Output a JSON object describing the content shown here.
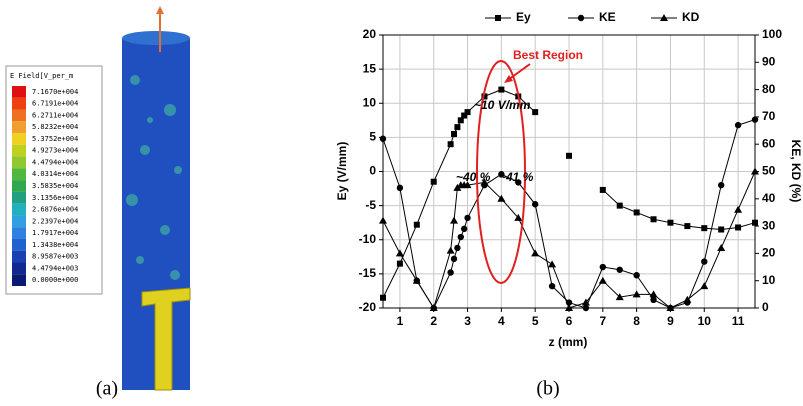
{
  "panel_a": {
    "legend_title": "E Field[V_per_m",
    "legend_labels": [
      "7.1670e+004",
      "6.7191e+004",
      "6.2711e+004",
      "5.8232e+004",
      "5.3752e+004",
      "4.9273e+004",
      "4.4794e+004",
      "4.0314e+004",
      "3.5835e+004",
      "3.1356e+004",
      "2.6876e+004",
      "2.2397e+004",
      "1.7917e+004",
      "1.3438e+004",
      "8.9587e+003",
      "4.4794e+003",
      "0.0000e+000"
    ]
  },
  "captions": [
    "(a)",
    "(b)"
  ],
  "chart_data": {
    "type": "line",
    "xlabel": "z (mm)",
    "ylabel": "Ey (V/mm)",
    "y2label": "KE, KD (%)",
    "annotations": [
      "Best Region",
      "~10 V/mm",
      "~40 %",
      "~41 %"
    ],
    "x": [
      0.5,
      1,
      1.5,
      2,
      2.5,
      2.6,
      2.7,
      2.8,
      2.9,
      3,
      3.5,
      4,
      4.5,
      5,
      5.5,
      6,
      6.5,
      7,
      7.5,
      8,
      8.5,
      9,
      9.5,
      10,
      10.5,
      11,
      11.5
    ],
    "series": [
      {
        "name": "Ey",
        "color": "#000000",
        "marker": "square",
        "values": [
          -18.5,
          -13.5,
          -7.8,
          -1.5,
          4,
          5.5,
          6.5,
          7.5,
          8.2,
          8.7,
          11,
          12,
          11,
          8.7,
          null,
          2.3,
          null,
          -2.7,
          -5,
          -6,
          -7,
          -7.5,
          -8,
          -8.3,
          -8.5,
          -8.2,
          -7.5
        ]
      },
      {
        "name": "KE",
        "color": "#000000",
        "marker": "circle",
        "axis": "y2",
        "values": [
          62,
          44,
          10,
          0,
          13,
          18,
          22,
          26,
          29,
          33,
          45,
          49,
          46,
          38,
          8,
          2,
          0,
          15,
          14,
          12,
          3,
          0,
          2,
          17,
          45,
          67,
          69
        ]
      },
      {
        "name": "KD",
        "color": "#000000",
        "marker": "triangle",
        "axis": "y2",
        "values": [
          32,
          20,
          10,
          0,
          21,
          32,
          44,
          45,
          45,
          45,
          46,
          40,
          33,
          20,
          16,
          0,
          2,
          10,
          4,
          5,
          5,
          0,
          3,
          8,
          22,
          36,
          50
        ]
      }
    ],
    "xlim": [
      0.5,
      11.5
    ],
    "xticks": [
      1,
      2,
      3,
      4,
      5,
      6,
      7,
      8,
      9,
      10,
      11
    ],
    "ylim": [
      -20,
      20
    ],
    "yticks": [
      -20,
      -15,
      -10,
      -5,
      0,
      5,
      10,
      15,
      20
    ],
    "y2lim": [
      0,
      100
    ],
    "y2ticks": [
      0,
      10,
      20,
      30,
      40,
      50,
      60,
      70,
      80,
      90,
      100
    ],
    "grid": true,
    "legend": "top"
  }
}
